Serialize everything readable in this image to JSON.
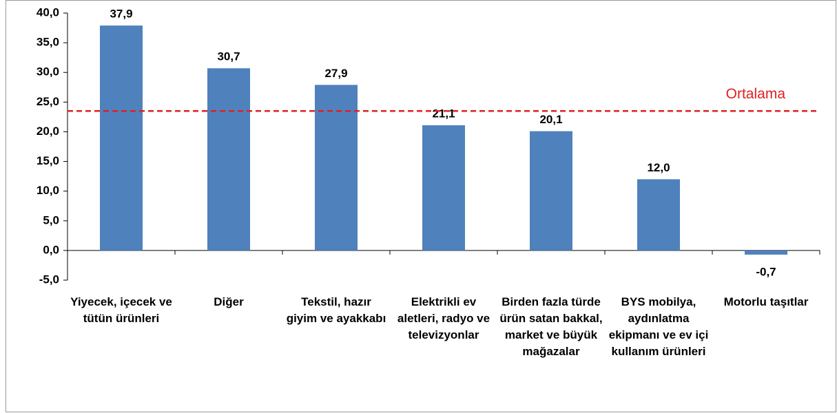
{
  "chart_data": {
    "type": "bar",
    "categories": [
      "Yiyecek, içecek ve tütün ürünleri",
      "Diğer",
      "Tekstil, hazır giyim ve ayakkabı",
      "Elektrikli ev aletleri, radyo ve televizyonlar",
      "Birden fazla türde ürün satan bakkal, market ve büyük mağazalar",
      "BYS mobilya, aydınlatma ekipmanı ve ev içi kullanım ürünleri",
      "Motorlu taşıtlar"
    ],
    "values": [
      37.9,
      30.7,
      27.9,
      21.1,
      20.1,
      12.0,
      -0.7
    ],
    "value_labels": [
      "37,9",
      "30,7",
      "27,9",
      "21,1",
      "20,1",
      "12,0",
      "-0,7"
    ],
    "color": "#4f81bd",
    "ylim": [
      -5,
      40
    ],
    "yticks": [
      {
        "value": -5,
        "label": "-5,0"
      },
      {
        "value": 0,
        "label": "0,0"
      },
      {
        "value": 5,
        "label": "5,0"
      },
      {
        "value": 10,
        "label": "10,0"
      },
      {
        "value": 15,
        "label": "15,0"
      },
      {
        "value": 20,
        "label": "20,0"
      },
      {
        "value": 25,
        "label": "25,0"
      },
      {
        "value": 30,
        "label": "30,0"
      },
      {
        "value": 35,
        "label": "35,0"
      },
      {
        "value": 40,
        "label": "40,0"
      }
    ],
    "reference_line": {
      "label": "Ortalama",
      "value": 23.5,
      "color": "#e02020"
    }
  }
}
